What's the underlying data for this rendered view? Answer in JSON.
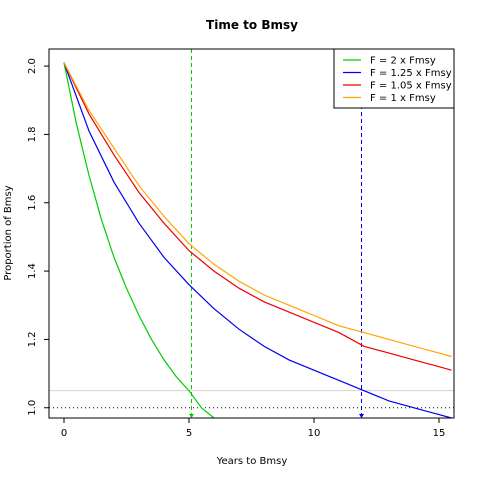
{
  "chart_data": {
    "type": "line",
    "title": "Time to Bmsy",
    "xlabel": "Years to Bmsy",
    "ylabel": "Proportion of Bmsy",
    "xlim": [
      -0.6,
      15.6
    ],
    "ylim": [
      0.97,
      2.05
    ],
    "xticks": [
      0,
      5,
      10,
      15
    ],
    "yticks": [
      1.0,
      1.2,
      1.4,
      1.6,
      1.8,
      2.0
    ],
    "grid": false,
    "legend_position": "top-right",
    "series": [
      {
        "name": "F = 2 x Fmsy",
        "color": "#00cd00",
        "x": [
          0,
          0.5,
          1,
          1.5,
          2,
          2.5,
          3,
          3.5,
          4,
          4.5,
          5,
          5.5,
          6.0
        ],
        "y": [
          2.01,
          1.83,
          1.68,
          1.55,
          1.44,
          1.35,
          1.27,
          1.2,
          1.14,
          1.09,
          1.05,
          1.0,
          0.97
        ]
      },
      {
        "name": "F = 1.25 x Fmsy",
        "color": "#0000ee",
        "x": [
          0,
          1,
          2,
          3,
          4,
          5,
          6,
          7,
          8,
          9,
          10,
          11,
          12,
          13,
          14,
          15,
          15.5
        ],
        "y": [
          2.01,
          1.81,
          1.66,
          1.54,
          1.44,
          1.36,
          1.29,
          1.23,
          1.18,
          1.14,
          1.11,
          1.08,
          1.05,
          1.02,
          1.0,
          0.98,
          0.97
        ]
      },
      {
        "name": "F = 1.05 x Fmsy",
        "color": "#ee0000",
        "x": [
          0,
          1,
          2,
          3,
          4,
          5,
          6,
          7,
          8,
          9,
          10,
          11,
          12,
          13,
          14,
          15,
          15.5
        ],
        "y": [
          2.01,
          1.86,
          1.74,
          1.63,
          1.54,
          1.46,
          1.4,
          1.35,
          1.31,
          1.28,
          1.25,
          1.22,
          1.18,
          1.16,
          1.14,
          1.12,
          1.11
        ]
      },
      {
        "name": "F = 1 x Fmsy",
        "color": "#ffa500",
        "x": [
          0,
          1,
          2,
          3,
          4,
          5,
          6,
          7,
          8,
          9,
          10,
          11,
          12,
          13,
          14,
          15,
          15.5
        ],
        "y": [
          2.01,
          1.87,
          1.76,
          1.65,
          1.56,
          1.48,
          1.42,
          1.37,
          1.33,
          1.3,
          1.27,
          1.24,
          1.22,
          1.2,
          1.18,
          1.16,
          1.15
        ]
      }
    ],
    "reference_lines": [
      {
        "orientation": "vertical",
        "value": 5.1,
        "color": "#00cd00",
        "style": "dashed"
      },
      {
        "orientation": "vertical",
        "value": 11.9,
        "color": "#0000ee",
        "style": "dashed"
      },
      {
        "orientation": "horizontal",
        "value": 1.0,
        "color": "#000000",
        "style": "dotted"
      },
      {
        "orientation": "horizontal",
        "value": 1.05,
        "color": "#d3d3d3",
        "style": "solid"
      }
    ]
  }
}
